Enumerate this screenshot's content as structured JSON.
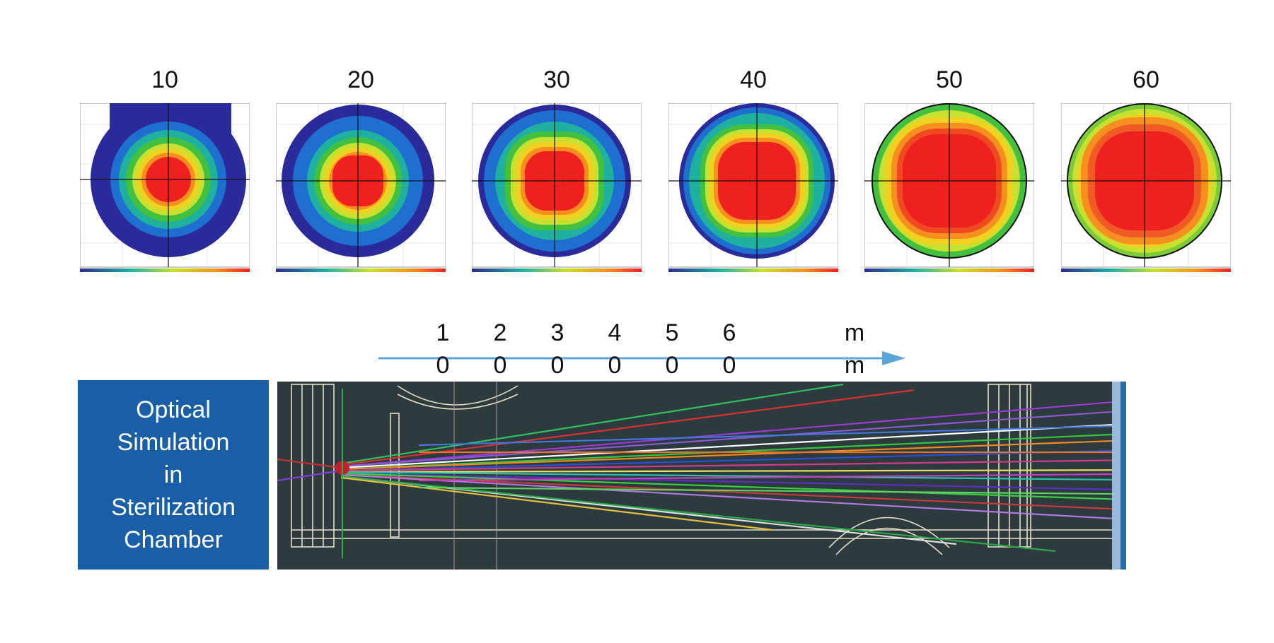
{
  "distance_labels": [
    "10",
    "20",
    "30",
    "40",
    "50",
    "60"
  ],
  "axis": {
    "digits_top": [
      "1",
      "2",
      "3",
      "4",
      "5",
      "6"
    ],
    "digits_bottom": [
      "0",
      "0",
      "0",
      "0",
      "0",
      "0"
    ],
    "unit_top": "m",
    "unit_bottom": "m",
    "arrow_color": "#5aa6d6"
  },
  "caption": "Optical\nSimulation\nin\nSterilization\nChamber",
  "colors": {
    "caption_bg": "#1a5ea8",
    "sim_bg": "#2d3b3f",
    "intensity_scale": [
      "#2a2a9a",
      "#1f6fd0",
      "#1fb0a0",
      "#44c040",
      "#c8e030",
      "#f0d020",
      "#f59020",
      "#ee2020"
    ]
  }
}
